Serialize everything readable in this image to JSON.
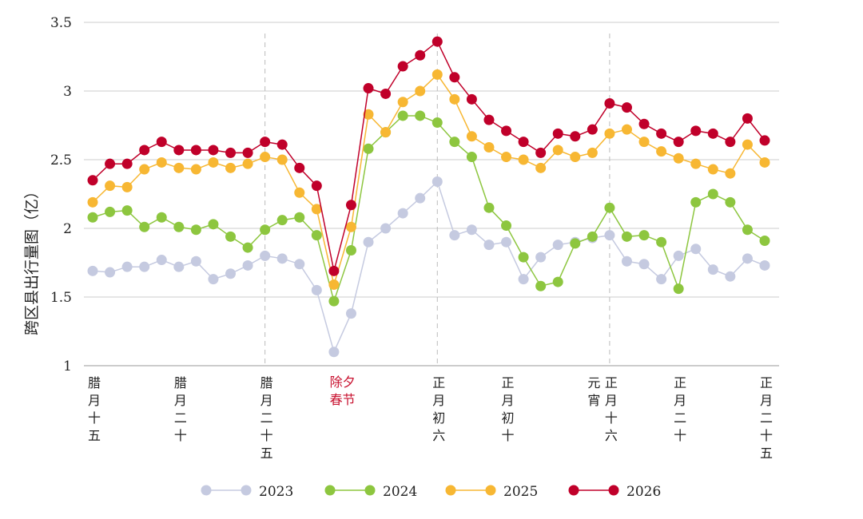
{
  "chart_data": {
    "type": "line",
    "ylabel": "跨区县出行量图（亿）",
    "ylim": [
      1,
      3.5
    ],
    "yticks": [
      "1",
      "1.5",
      "2",
      "2.5",
      "3",
      "3.5"
    ],
    "grid": "horizontal",
    "legend_placement": "bottom",
    "x_count": 40,
    "x_labels": [
      {
        "index": 0,
        "text": "腊月十五",
        "highlight": false
      },
      {
        "index": 5,
        "text": "腊月二十",
        "highlight": false
      },
      {
        "index": 10,
        "text": "腊月二十五",
        "highlight": false
      },
      {
        "index": 14.5,
        "text": "除夕|春节",
        "highlight": true
      },
      {
        "index": 20,
        "text": "正月初六",
        "highlight": false
      },
      {
        "index": 24,
        "text": "正月初十",
        "highlight": false
      },
      {
        "index": 29,
        "text": "元宵",
        "highlight": false
      },
      {
        "index": 30,
        "text": "正月十六",
        "highlight": false
      },
      {
        "index": 34,
        "text": "正月二十",
        "highlight": false
      },
      {
        "index": 39,
        "text": "正月二十五",
        "highlight": false
      }
    ],
    "reference_lines_at_index": [
      10,
      20,
      30
    ],
    "highlight_color": "#c8102e",
    "series": [
      {
        "name": "2023",
        "color": "#c5cae0",
        "values": [
          1.69,
          1.68,
          1.72,
          1.72,
          1.77,
          1.72,
          1.76,
          1.63,
          1.67,
          1.73,
          1.8,
          1.78,
          1.74,
          1.55,
          1.1,
          1.38,
          1.9,
          2.0,
          2.11,
          2.22,
          2.34,
          1.95,
          1.99,
          1.88,
          1.9,
          1.63,
          1.79,
          1.88,
          1.9,
          1.93,
          1.95,
          1.76,
          1.74,
          1.63,
          1.8,
          1.85,
          1.7,
          1.65,
          1.78,
          1.73
        ]
      },
      {
        "name": "2024",
        "color": "#8dc63f",
        "values": [
          2.08,
          2.12,
          2.13,
          2.01,
          2.08,
          2.01,
          1.99,
          2.03,
          1.94,
          1.86,
          1.99,
          2.06,
          2.08,
          1.95,
          1.47,
          1.84,
          2.58,
          2.7,
          2.82,
          2.82,
          2.77,
          2.63,
          2.52,
          2.15,
          2.02,
          1.79,
          1.58,
          1.61,
          1.89,
          1.94,
          2.15,
          1.94,
          1.95,
          1.9,
          1.56,
          2.19,
          2.25,
          2.19,
          1.99,
          1.91
        ]
      },
      {
        "name": "2025",
        "color": "#f7b733",
        "values": [
          2.19,
          2.31,
          2.3,
          2.43,
          2.48,
          2.44,
          2.43,
          2.48,
          2.44,
          2.47,
          2.52,
          2.5,
          2.26,
          2.14,
          1.59,
          2.01,
          2.83,
          2.7,
          2.92,
          3.0,
          3.12,
          2.94,
          2.67,
          2.59,
          2.52,
          2.5,
          2.44,
          2.57,
          2.52,
          2.55,
          2.69,
          2.72,
          2.63,
          2.56,
          2.51,
          2.47,
          2.43,
          2.4,
          2.61,
          2.48
        ]
      },
      {
        "name": "2026",
        "color": "#c0002a",
        "values": [
          2.35,
          2.47,
          2.47,
          2.57,
          2.63,
          2.57,
          2.57,
          2.57,
          2.55,
          2.55,
          2.63,
          2.61,
          2.44,
          2.31,
          1.69,
          2.17,
          3.02,
          2.98,
          3.18,
          3.26,
          3.36,
          3.1,
          2.94,
          2.79,
          2.71,
          2.63,
          2.55,
          2.69,
          2.67,
          2.72,
          2.91,
          2.88,
          2.76,
          2.69,
          2.63,
          2.71,
          2.69,
          2.63,
          2.8,
          2.64
        ]
      }
    ]
  }
}
